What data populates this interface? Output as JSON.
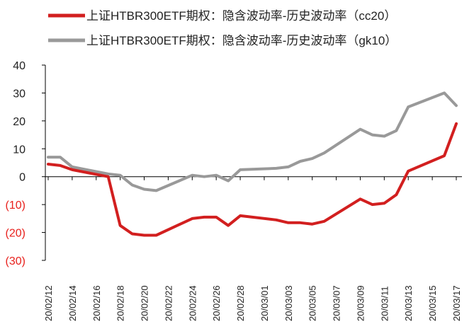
{
  "chart_data": {
    "type": "line",
    "title": "",
    "xlabel": "",
    "ylabel": "",
    "ylim": [
      -30,
      40
    ],
    "yticks": [
      40,
      30,
      20,
      10,
      0,
      -10,
      -20,
      -30
    ],
    "ytick_labels": [
      "40",
      "30",
      "20",
      "10",
      "0",
      "(10)",
      "(20)",
      "(30)"
    ],
    "negative_tick_color": "#e8211d",
    "positive_tick_color": "#222222",
    "grid": false,
    "legend_position": "top",
    "x_tick_labels": [
      "20/02/12",
      "20/02/14",
      "20/02/16",
      "20/02/18",
      "20/02/20",
      "20/02/22",
      "20/02/24",
      "20/02/26",
      "20/02/28",
      "20/03/01",
      "20/03/03",
      "20/03/05",
      "20/03/07",
      "20/03/09",
      "20/03/11",
      "20/03/13",
      "20/03/15",
      "20/03/17"
    ],
    "x_dates": [
      "2020-02-12",
      "2020-02-13",
      "2020-02-14",
      "2020-02-17",
      "2020-02-18",
      "2020-02-19",
      "2020-02-20",
      "2020-02-21",
      "2020-02-24",
      "2020-02-25",
      "2020-02-26",
      "2020-02-27",
      "2020-02-28",
      "2020-03-02",
      "2020-03-03",
      "2020-03-04",
      "2020-03-05",
      "2020-03-06",
      "2020-03-09",
      "2020-03-10",
      "2020-03-11",
      "2020-03-12",
      "2020-03-13",
      "2020-03-16",
      "2020-03-17"
    ],
    "series": [
      {
        "name": "上证HTBR300ETF期权：隐含波动率-历史波动率（cc20）",
        "color": "#d21f1f",
        "values": [
          4.5,
          4.0,
          2.5,
          0.0,
          -17.5,
          -20.5,
          -21.0,
          -21.0,
          -15.0,
          -14.5,
          -14.5,
          -17.5,
          -14.0,
          -15.5,
          -16.5,
          -16.5,
          -17.0,
          -16.0,
          -8.0,
          -10.0,
          -9.5,
          -6.5,
          2.0,
          7.5,
          19.0
        ]
      },
      {
        "name": "上证HTBR300ETF期权：隐含波动率-历史波动率（gk10）",
        "color": "#999999",
        "values": [
          7.0,
          7.0,
          3.5,
          1.0,
          0.5,
          -3.0,
          -4.5,
          -5.0,
          0.5,
          0.0,
          0.5,
          -1.5,
          2.5,
          3.0,
          3.5,
          5.5,
          6.5,
          8.5,
          17.0,
          15.0,
          14.5,
          16.5,
          25.0,
          30.0,
          25.5
        ]
      }
    ]
  }
}
